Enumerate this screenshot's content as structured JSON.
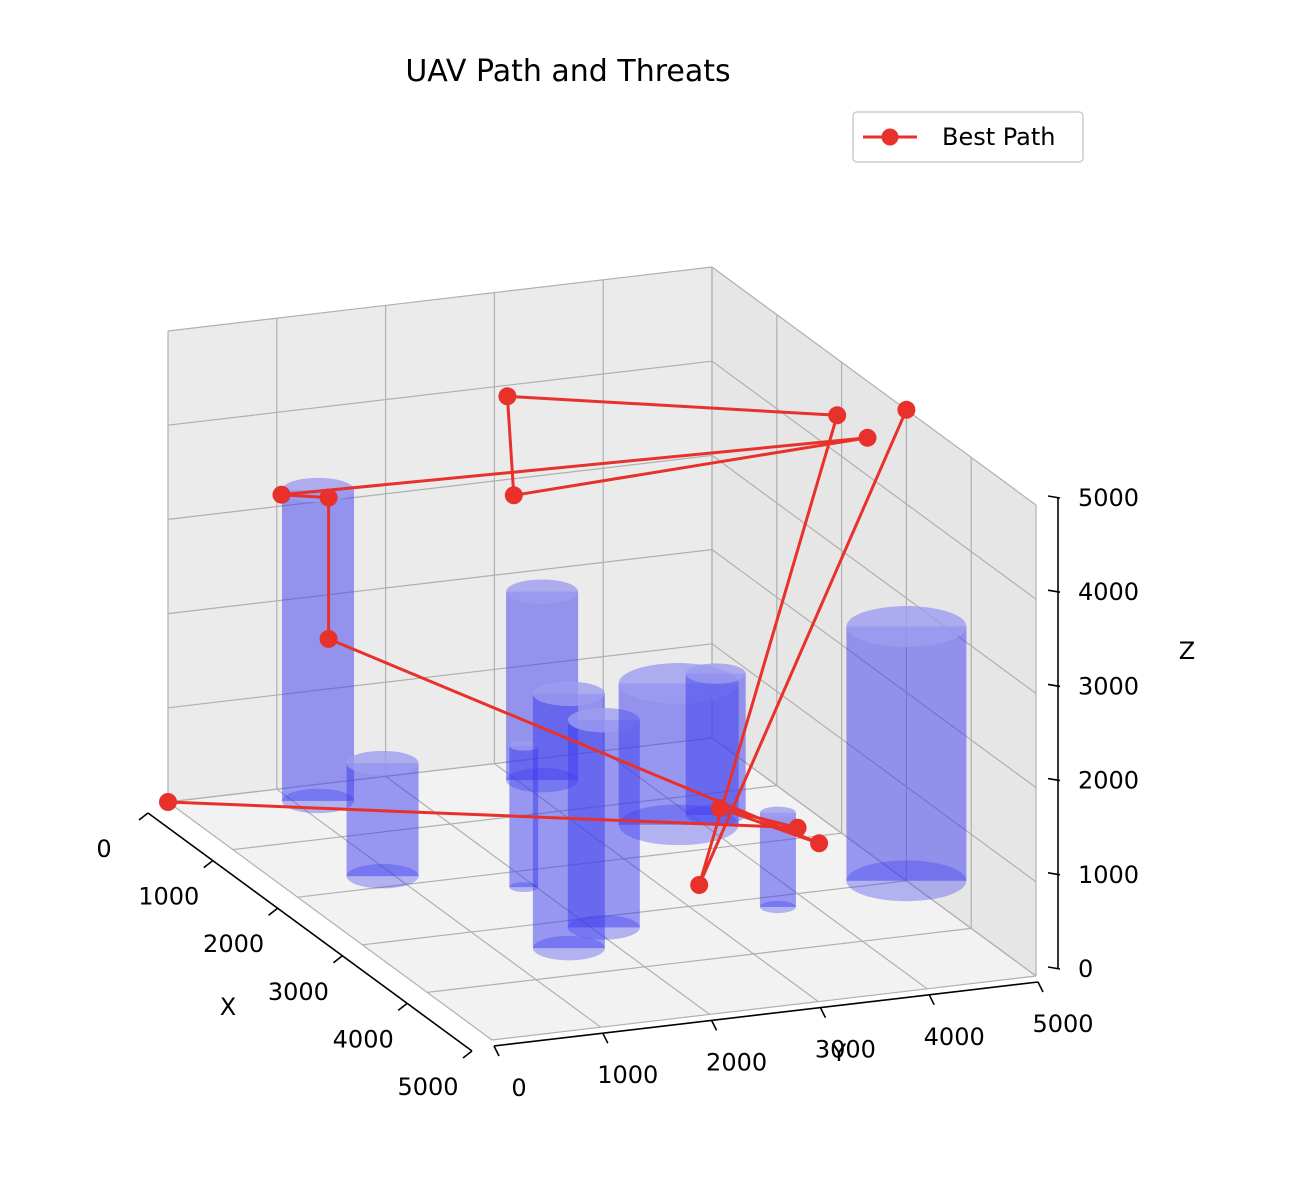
{
  "chart_data": {
    "type": "3d-line-with-cylinders",
    "title": "UAV Path and Threats",
    "xlabel": "X",
    "ylabel": "Y",
    "zlabel": "Z",
    "xlim": [
      0,
      5000
    ],
    "ylim": [
      0,
      5000
    ],
    "zlim": [
      0,
      5000
    ],
    "xticks": [
      "0",
      "1000",
      "2000",
      "3000",
      "4000",
      "5000"
    ],
    "yticks": [
      "0",
      "1000",
      "2000",
      "3000",
      "4000",
      "5000"
    ],
    "zticks": [
      "0",
      "1000",
      "2000",
      "3000",
      "4000",
      "5000"
    ],
    "grid": true,
    "legend": {
      "position": "top-right",
      "entries": [
        "Best Path"
      ]
    },
    "colors": {
      "path": "#e8312a",
      "threat": "#3b3bf0",
      "pane": "#f2f2f2",
      "grid": "#b0b0b0"
    },
    "series": [
      {
        "name": "Best Path",
        "points": [
          [
            0,
            0,
            0
          ],
          [
            3000,
            4000,
            700
          ],
          [
            1800,
            4000,
            300
          ],
          [
            3500,
            3900,
            800
          ],
          [
            800,
            1000,
            2000
          ],
          [
            800,
            1000,
            3500
          ],
          [
            1500,
            150,
            4000
          ],
          [
            2400,
            5000,
            4400
          ],
          [
            300,
            3000,
            3000
          ],
          [
            200,
            3000,
            4000
          ],
          [
            2100,
            4900,
            4500
          ],
          [
            4000,
            2500,
            800
          ],
          [
            3000,
            5000,
            5000
          ]
        ]
      }
    ],
    "threats": [
      {
        "x": 300,
        "y": 1200,
        "radius": 300,
        "height": 3300
      },
      {
        "x": 1800,
        "y": 900,
        "radius": 300,
        "height": 1200
      },
      {
        "x": 3500,
        "y": 1600,
        "radius": 300,
        "height": 2700
      },
      {
        "x": 2300,
        "y": 1900,
        "radius": 120,
        "height": 1500
      },
      {
        "x": 3200,
        "y": 2100,
        "radius": 300,
        "height": 2200
      },
      {
        "x": 400,
        "y": 3200,
        "radius": 300,
        "height": 2000
      },
      {
        "x": 1500,
        "y": 3800,
        "radius": 500,
        "height": 1500
      },
      {
        "x": 1400,
        "y": 4200,
        "radius": 250,
        "height": 1500
      },
      {
        "x": 3200,
        "y": 3700,
        "radius": 150,
        "height": 1000
      },
      {
        "x": 3000,
        "y": 5000,
        "radius": 500,
        "height": 2700
      }
    ]
  }
}
